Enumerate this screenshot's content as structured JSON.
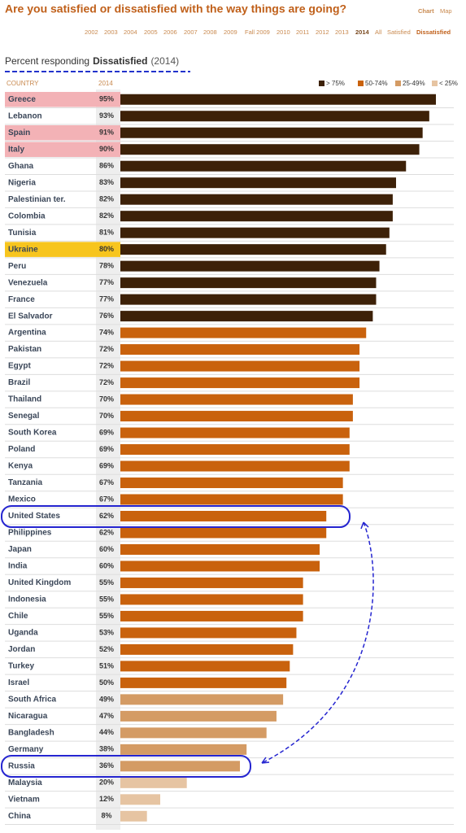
{
  "header": {
    "title": "Are you satisfied or dissatisfied with the way things are going?",
    "views": [
      "Chart",
      "Map"
    ],
    "tabs": [
      "2002",
      "2003",
      "2004",
      "2005",
      "2006",
      "2007",
      "2008",
      "2009",
      "Fall 2009",
      "2010",
      "2011",
      "2012",
      "2013",
      "2014",
      "All",
      "Satisfied",
      "Dissatisfied"
    ]
  },
  "chart_data": {
    "type": "bar",
    "orientation": "horizontal",
    "subtitle_prefix": "Percent responding",
    "subtitle_measure": "Dissatisfied",
    "subtitle_year": "(2014)",
    "category_header": "COUNTRY",
    "value_header": "2014",
    "categories": [
      "Greece",
      "Lebanon",
      "Spain",
      "Italy",
      "Ghana",
      "Nigeria",
      "Palestinian ter.",
      "Colombia",
      "Tunisia",
      "Ukraine",
      "Peru",
      "Venezuela",
      "France",
      "El Salvador",
      "Argentina",
      "Pakistan",
      "Egypt",
      "Brazil",
      "Thailand",
      "Senegal",
      "South Korea",
      "Poland",
      "Kenya",
      "Tanzania",
      "Mexico",
      "United States",
      "Philippines",
      "Japan",
      "India",
      "United Kingdom",
      "Indonesia",
      "Chile",
      "Uganda",
      "Jordan",
      "Turkey",
      "Israel",
      "South Africa",
      "Nicaragua",
      "Bangladesh",
      "Germany",
      "Russia",
      "Malaysia",
      "Vietnam",
      "China"
    ],
    "values": [
      95,
      93,
      91,
      90,
      86,
      83,
      82,
      82,
      81,
      80,
      78,
      77,
      77,
      76,
      74,
      72,
      72,
      72,
      70,
      70,
      69,
      69,
      69,
      67,
      67,
      62,
      62,
      60,
      60,
      55,
      55,
      55,
      53,
      52,
      51,
      50,
      49,
      47,
      44,
      38,
      36,
      20,
      12,
      8
    ],
    "value_labels": [
      "95%",
      "93%",
      "91%",
      "90%",
      "86%",
      "83%",
      "82%",
      "82%",
      "81%",
      "80%",
      "78%",
      "77%",
      "77%",
      "76%",
      "74%",
      "72%",
      "72%",
      "72%",
      "70%",
      "70%",
      "69%",
      "69%",
      "69%",
      "67%",
      "67%",
      "62%",
      "62%",
      "60%",
      "60%",
      "55%",
      "55%",
      "55%",
      "53%",
      "52%",
      "51%",
      "50%",
      "49%",
      "47%",
      "44%",
      "38%",
      "36%",
      "20%",
      "12%",
      "8%"
    ],
    "bar_colors": [
      "#3d2108",
      "#3d2108",
      "#3d2108",
      "#3d2108",
      "#3d2108",
      "#3d2108",
      "#3d2108",
      "#3d2108",
      "#3d2108",
      "#3d2108",
      "#3d2108",
      "#3d2108",
      "#3d2108",
      "#3d2108",
      "#c9620d",
      "#c9620d",
      "#c9620d",
      "#c9620d",
      "#c9620d",
      "#c9620d",
      "#c9620d",
      "#c9620d",
      "#c9620d",
      "#c9620d",
      "#c9620d",
      "#c9620d",
      "#c9620d",
      "#c9620d",
      "#c9620d",
      "#c9620d",
      "#c9620d",
      "#c9620d",
      "#c9620d",
      "#c9620d",
      "#c9620d",
      "#c9620d",
      "#d49b64",
      "#d49b64",
      "#d49b64",
      "#d49b64",
      "#d49b64",
      "#e6c4a2",
      "#e6c4a2",
      "#e6c4a2"
    ],
    "highlight_colors": [
      "#f3b2b6",
      null,
      "#f3b2b6",
      "#f3b2b6",
      null,
      null,
      null,
      null,
      null,
      "#f7c51e",
      null,
      null,
      null,
      null,
      null,
      null,
      null,
      null,
      null,
      null,
      null,
      null,
      null,
      null,
      null,
      null,
      null,
      null,
      null,
      null,
      null,
      null,
      null,
      null,
      null,
      null,
      null,
      null,
      null,
      null,
      null,
      null,
      null,
      null
    ],
    "legend": [
      {
        "name": "> 75%",
        "color": "#3d2108"
      },
      {
        "name": "50-74%",
        "color": "#c9620d"
      },
      {
        "name": "25-49%",
        "color": "#d49b64"
      },
      {
        "name": "< 25%",
        "color": "#e6c4a2"
      }
    ]
  }
}
